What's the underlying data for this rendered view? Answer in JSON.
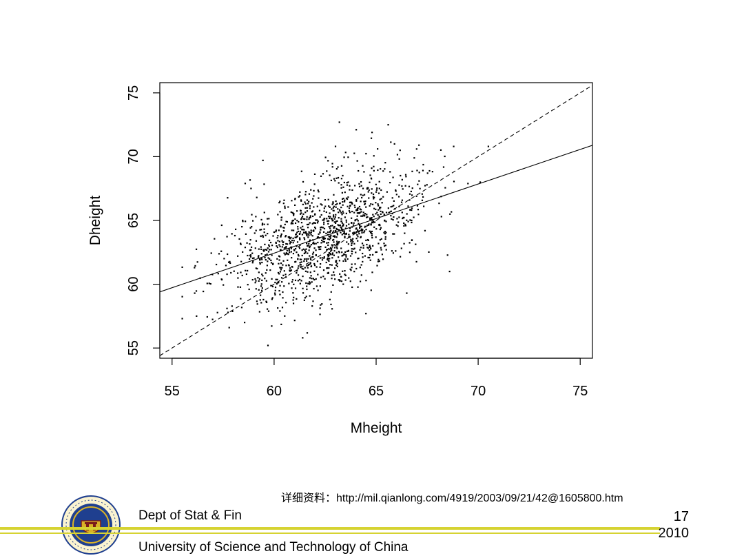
{
  "chart_data": {
    "type": "scatter",
    "xlabel": "Mheight",
    "ylabel": "Dheight",
    "xlim": [
      54.4,
      75.6
    ],
    "ylim": [
      54.2,
      75.8
    ],
    "x_ticks": [
      55,
      60,
      65,
      70,
      75
    ],
    "y_ticks": [
      55,
      60,
      65,
      70,
      75
    ],
    "grid": false,
    "lines": [
      {
        "name": "",
        "style": "solid",
        "intercept": 29.917,
        "slope": 0.542
      },
      {
        "name": "",
        "style": "dashed",
        "intercept": 0,
        "slope": 1
      }
    ],
    "series": [
      {
        "name": "",
        "n_points": 1375,
        "mean_x": 62.45,
        "mean_y": 63.75,
        "sd_x": 2.36,
        "sd_y": 2.6,
        "correlation": 0.49,
        "notable_points": [
          [
            63.2,
            72.7
          ],
          [
            64.8,
            71.9
          ],
          [
            65.9,
            71.0
          ],
          [
            67.1,
            70.9
          ],
          [
            68.8,
            70.8
          ],
          [
            70.5,
            70.8
          ],
          [
            70.1,
            68.0
          ],
          [
            68.2,
            65.3
          ],
          [
            68.6,
            61.0
          ],
          [
            59.7,
            55.2
          ],
          [
            61.4,
            55.8
          ],
          [
            56.2,
            57.5
          ],
          [
            57.8,
            56.6
          ],
          [
            64.5,
            57.7
          ],
          [
            56.1,
            61.3
          ],
          [
            66.5,
            59.3
          ]
        ]
      }
    ]
  },
  "footer": {
    "source_note": "详细资料：http://mil.qianlong.com/4919/2003/09/21/42@1605800.htm",
    "dept": "Dept of Stat & Fin",
    "university": "University of Science and Technology of China",
    "page_number": "17",
    "year": "2010"
  },
  "colors": {
    "accent_rule": "#d6d332",
    "logo_blue": "#1f3f8f",
    "logo_gold": "#d9b227"
  }
}
